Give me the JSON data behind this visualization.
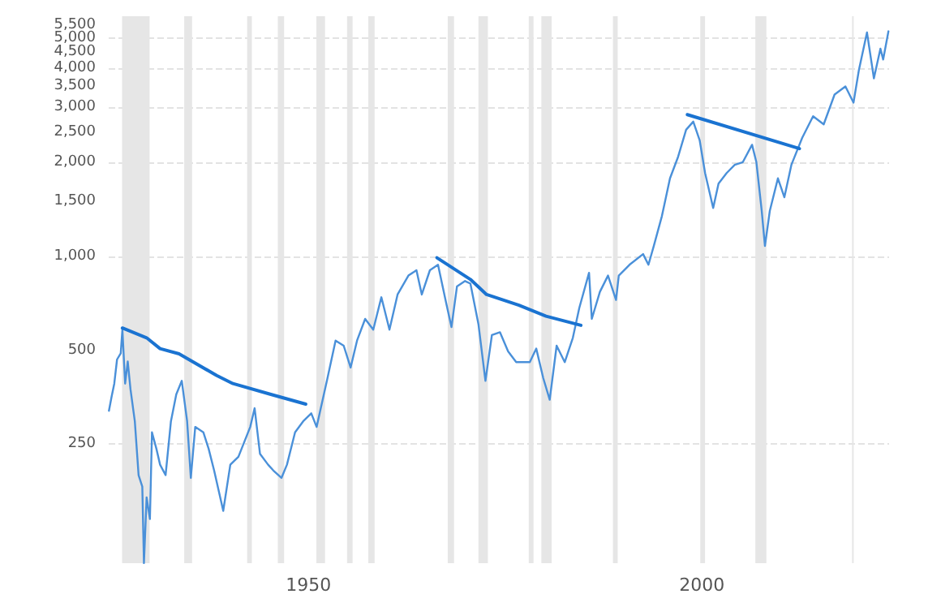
{
  "chart_data": {
    "type": "line",
    "log": "y",
    "grid": "y",
    "marker": "none",
    "line_style": "solid",
    "xlim": [
      1924.6,
      2023.8
    ],
    "xticks": [
      1950,
      2000
    ],
    "ylim": [
      104,
      5870
    ],
    "yticks": [
      250,
      500,
      {
        "value": 1000,
        "label": "1,000"
      },
      {
        "value": 1500,
        "label": "1,500"
      },
      {
        "value": 2000,
        "label": "2,000"
      },
      {
        "value": 2500,
        "label": "2,500"
      },
      {
        "value": 3000,
        "label": "3,000"
      },
      {
        "value": 3500,
        "label": "3,500"
      },
      {
        "value": 4000,
        "label": "4,000"
      },
      {
        "value": 4500,
        "label": "4,500"
      },
      {
        "value": 5000,
        "label": "5,000"
      },
      {
        "value": 5500,
        "label": "5,500"
      }
    ],
    "series": [
      {
        "color": "#4a90d9",
        "x": [
          1924.63,
          1924.96,
          1925.31,
          1925.66,
          1926.13,
          1926.34,
          1926.69,
          1927.02,
          1927.37,
          1927.92,
          1928.4,
          1928.87,
          1929.08,
          1929.42,
          1929.84,
          1930.1,
          1930.66,
          1931.13,
          1931.83,
          1932.51,
          1933.19,
          1933.89,
          1934.57,
          1935.04,
          1935.6,
          1936.63,
          1937.3,
          1938.0,
          1939.16,
          1940.06,
          1941.09,
          1942.59,
          1943.15,
          1943.83,
          1944.86,
          1945.53,
          1946.56,
          1947.26,
          1948.29,
          1949.32,
          1950.35,
          1951.03,
          1952.41,
          1953.44,
          1954.47,
          1955.35,
          1956.17,
          1957.2,
          1958.23,
          1959.26,
          1960.29,
          1961.32,
          1962.7,
          1963.72,
          1964.4,
          1965.43,
          1966.46,
          1967.49,
          1968.17,
          1968.87,
          1969.9,
          1970.58,
          1971.6,
          1972.49,
          1973.31,
          1974.34,
          1975.37,
          1976.4,
          1978.13,
          1978.95,
          1979.84,
          1980.66,
          1981.54,
          1982.57,
          1983.6,
          1984.42,
          1985.66,
          1986.01,
          1987.04,
          1988.07,
          1989.09,
          1989.44,
          1990.8,
          1992.53,
          1993.21,
          1993.89,
          1994.92,
          1995.95,
          1996.98,
          1998.0,
          1998.91,
          1999.73,
          2000.41,
          2001.44,
          2002.12,
          2003.15,
          2004.18,
          2005.21,
          2006.38,
          2006.93,
          2007.61,
          2008.02,
          2008.64,
          2009.67,
          2010.49,
          2011.38,
          2012.76,
          2014.14,
          2015.49,
          2016.87,
          2018.25,
          2019.28,
          2019.96,
          2020.99,
          2021.87,
          2022.7,
          2023.05,
          2023.72
        ],
        "values": [
          320,
          354,
          391,
          467,
          489,
          582,
          391,
          460,
          375,
          296,
          199,
          183,
          104,
          169,
          144,
          273,
          242,
          215,
          199,
          296,
          361,
          399,
          296,
          195,
          284,
          273,
          242,
          206,
          153,
          215,
          228,
          284,
          326,
          233,
          215,
          206,
          195,
          215,
          273,
          296,
          314,
          284,
          407,
          537,
          517,
          440,
          537,
          630,
          582,
          739,
          582,
          754,
          867,
          902,
          754,
          902,
          939,
          710,
          593,
          800,
          833,
          817,
          606,
          399,
          559,
          571,
          496,
          458,
          458,
          506,
          407,
          347,
          517,
          458,
          548,
          683,
          885,
          630,
          769,
          867,
          725,
          867,
          939,
          1016,
          939,
          1079,
          1344,
          1776,
          2082,
          2542,
          2699,
          2347,
          1847,
          1427,
          1708,
          1847,
          1962,
          2002,
          2275,
          2002,
          1398,
          1079,
          1398,
          1776,
          1545,
          1962,
          2395,
          2807,
          2645,
          3295,
          3499,
          3105,
          3943,
          5210,
          3714,
          4622,
          4266,
          5253
        ]
      },
      {
        "color": "#1a73d1",
        "x": [
          1926.34,
          1929.42,
          1931.13,
          1933.54,
          1938.33,
          1940.39,
          1945.21,
          1949.65
        ],
        "values": [
          589,
          548,
          506,
          487,
          415,
          391,
          361,
          336
        ]
      },
      {
        "color": "#1a73d1",
        "x": [
          1966.32,
          1970.58,
          1972.63,
          1976.75,
          1980.19,
          1984.63
        ],
        "values": [
          989,
          843,
          754,
          697,
          643,
          601
        ]
      },
      {
        "color": "#1a73d1",
        "x": [
          1998.15,
          2012.41
        ],
        "values": [
          2841,
          2211
        ]
      }
    ],
    "bands": [
      {
        "axis": "x",
        "from": 1926.3,
        "to": 1929.8,
        "color": "#e6e6e6"
      },
      {
        "axis": "x",
        "from": 1934.2,
        "to": 1935.2,
        "color": "#e6e6e6"
      },
      {
        "axis": "x",
        "from": 1942.2,
        "to": 1942.8,
        "color": "#e6e6e6"
      },
      {
        "axis": "x",
        "from": 1946.1,
        "to": 1946.9,
        "color": "#e6e6e6"
      },
      {
        "axis": "x",
        "from": 1951.0,
        "to": 1952.1,
        "color": "#e6e6e6"
      },
      {
        "axis": "x",
        "from": 1954.9,
        "to": 1955.6,
        "color": "#e6e6e6"
      },
      {
        "axis": "x",
        "from": 1957.6,
        "to": 1958.4,
        "color": "#e6e6e6"
      },
      {
        "axis": "x",
        "from": 1967.7,
        "to": 1968.5,
        "color": "#e6e6e6"
      },
      {
        "axis": "x",
        "from": 1971.6,
        "to": 1972.8,
        "color": "#e6e6e6"
      },
      {
        "axis": "x",
        "from": 1978.0,
        "to": 1978.6,
        "color": "#e6e6e6"
      },
      {
        "axis": "x",
        "from": 1979.6,
        "to": 1980.9,
        "color": "#e6e6e6"
      },
      {
        "axis": "x",
        "from": 1988.7,
        "to": 1989.3,
        "color": "#e6e6e6"
      },
      {
        "axis": "x",
        "from": 1999.8,
        "to": 2000.4,
        "color": "#e6e6e6"
      },
      {
        "axis": "x",
        "from": 2006.8,
        "to": 2008.2,
        "color": "#e6e6e6"
      },
      {
        "axis": "x",
        "from": 2019.1,
        "to": 2019.3,
        "color": "#e6e6e6"
      }
    ]
  }
}
